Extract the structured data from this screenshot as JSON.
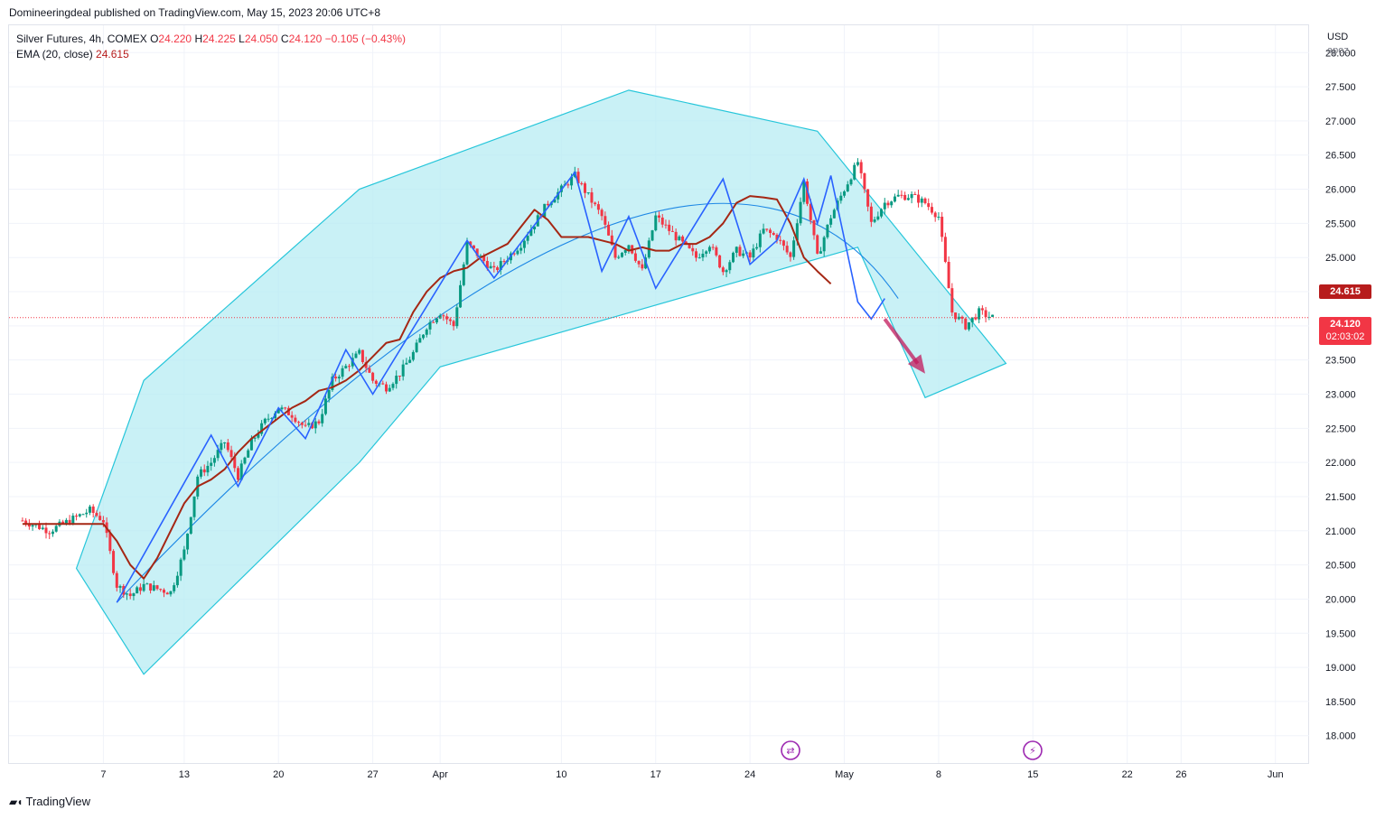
{
  "header": {
    "published": "Domineeringdeal published on TradingView.com, May 15, 2023 20:06 UTC+8"
  },
  "legend": {
    "symbol": "Silver Futures, 4h, COMEX",
    "open_label": "O",
    "open": "24.220",
    "high_label": "H",
    "high": "24.225",
    "low_label": "L",
    "low": "24.050",
    "close_label": "C",
    "close": "24.120",
    "change": "−0.105 (−0.43%)",
    "ema_label": "EMA (20, close)",
    "ema_value": "24.615"
  },
  "axis": {
    "currency": "USD",
    "unit_sub": "apoz"
  },
  "price_tags": {
    "ema": "24.615",
    "last": "24.120",
    "countdown": "02:03:02"
  },
  "footer": {
    "brand": "TradingView"
  },
  "colors": {
    "up": "#089981",
    "down": "#f23645",
    "ema": "#a52714",
    "channel_fill": "#b2ebf2",
    "channel_edge": "#26c6da",
    "zigzag": "#2962ff",
    "arrow": "#c2185b"
  },
  "chart_data": {
    "type": "candlestick",
    "title": "Silver Futures, 4h, COMEX",
    "ylim": [
      17.6,
      28.4
    ],
    "y_ticks": [
      "18.000",
      "18.500",
      "19.000",
      "19.500",
      "20.000",
      "20.500",
      "21.000",
      "21.500",
      "22.000",
      "22.500",
      "23.000",
      "23.500",
      "24.000",
      "24.500",
      "25.000",
      "25.500",
      "26.000",
      "26.500",
      "27.000",
      "27.500",
      "28.000"
    ],
    "x_ticks": [
      {
        "label": "7",
        "t": 7
      },
      {
        "label": "13",
        "t": 13
      },
      {
        "label": "20",
        "t": 20
      },
      {
        "label": "27",
        "t": 27
      },
      {
        "label": "Apr",
        "t": 32
      },
      {
        "label": "10",
        "t": 41
      },
      {
        "label": "17",
        "t": 48
      },
      {
        "label": "24",
        "t": 55
      },
      {
        "label": "May",
        "t": 62
      },
      {
        "label": "8",
        "t": 69
      },
      {
        "label": "15",
        "t": 76
      },
      {
        "label": "22",
        "t": 83
      },
      {
        "label": "26",
        "t": 87
      },
      {
        "label": "Jun",
        "t": 94
      }
    ],
    "x_unit_note": "t = days from Mar 1, 2023",
    "price_anchors": [
      [
        1,
        21.15
      ],
      [
        3,
        21.0
      ],
      [
        5,
        21.2
      ],
      [
        6,
        21.3
      ],
      [
        7,
        21.15
      ],
      [
        8,
        20.2
      ],
      [
        9,
        20.05
      ],
      [
        10,
        20.2
      ],
      [
        11,
        20.15
      ],
      [
        12,
        20.1
      ],
      [
        13,
        20.7
      ],
      [
        14,
        21.8
      ],
      [
        15,
        22.0
      ],
      [
        16,
        22.3
      ],
      [
        17,
        21.8
      ],
      [
        18,
        22.3
      ],
      [
        19,
        22.6
      ],
      [
        20,
        22.8
      ],
      [
        21,
        22.7
      ],
      [
        22,
        22.5
      ],
      [
        23,
        22.6
      ],
      [
        24,
        23.2
      ],
      [
        25,
        23.4
      ],
      [
        26,
        23.6
      ],
      [
        27,
        23.2
      ],
      [
        28,
        23.1
      ],
      [
        29,
        23.3
      ],
      [
        30,
        23.6
      ],
      [
        31,
        24.0
      ],
      [
        32,
        24.2
      ],
      [
        33,
        24.0
      ],
      [
        34,
        25.2
      ],
      [
        35,
        25.0
      ],
      [
        36,
        24.8
      ],
      [
        37,
        25.0
      ],
      [
        38,
        25.2
      ],
      [
        39,
        25.5
      ],
      [
        40,
        25.8
      ],
      [
        41,
        26.0
      ],
      [
        42,
        26.2
      ],
      [
        43,
        25.9
      ],
      [
        44,
        25.6
      ],
      [
        45,
        25.0
      ],
      [
        46,
        25.2
      ],
      [
        47,
        24.8
      ],
      [
        48,
        25.6
      ],
      [
        49,
        25.4
      ],
      [
        50,
        25.2
      ],
      [
        51,
        25.0
      ],
      [
        52,
        25.2
      ],
      [
        53,
        24.8
      ],
      [
        54,
        25.1
      ],
      [
        55,
        25.0
      ],
      [
        56,
        25.4
      ],
      [
        57,
        25.3
      ],
      [
        58,
        25.0
      ],
      [
        59,
        26.1
      ],
      [
        60,
        25.0
      ],
      [
        61,
        25.6
      ],
      [
        62,
        26.0
      ],
      [
        63,
        26.4
      ],
      [
        64,
        25.5
      ],
      [
        65,
        25.8
      ],
      [
        66,
        25.9
      ],
      [
        67,
        25.9
      ],
      [
        68,
        25.8
      ],
      [
        69,
        25.6
      ],
      [
        70,
        24.2
      ],
      [
        71,
        24.0
      ],
      [
        72,
        24.2
      ],
      [
        73,
        24.12
      ]
    ],
    "ema": [
      [
        1,
        21.1
      ],
      [
        3,
        21.1
      ],
      [
        6,
        21.1
      ],
      [
        7,
        21.1
      ],
      [
        8,
        20.85
      ],
      [
        9,
        20.5
      ],
      [
        10,
        20.3
      ],
      [
        11,
        20.6
      ],
      [
        12,
        21.0
      ],
      [
        13,
        21.4
      ],
      [
        14,
        21.65
      ],
      [
        15,
        21.75
      ],
      [
        16,
        21.9
      ],
      [
        17,
        22.15
      ],
      [
        18,
        22.35
      ],
      [
        19,
        22.5
      ],
      [
        20,
        22.65
      ],
      [
        21,
        22.8
      ],
      [
        22,
        22.9
      ],
      [
        23,
        23.05
      ],
      [
        24,
        23.1
      ],
      [
        25,
        23.2
      ],
      [
        26,
        23.35
      ],
      [
        27,
        23.55
      ],
      [
        28,
        23.75
      ],
      [
        29,
        23.8
      ],
      [
        30,
        24.2
      ],
      [
        31,
        24.5
      ],
      [
        32,
        24.7
      ],
      [
        33,
        24.8
      ],
      [
        34,
        24.85
      ],
      [
        35,
        25.0
      ],
      [
        36,
        25.1
      ],
      [
        37,
        25.2
      ],
      [
        38,
        25.45
      ],
      [
        39,
        25.7
      ],
      [
        40,
        25.55
      ],
      [
        41,
        25.3
      ],
      [
        42,
        25.3
      ],
      [
        43,
        25.3
      ],
      [
        44,
        25.25
      ],
      [
        45,
        25.2
      ],
      [
        46,
        25.1
      ],
      [
        47,
        25.15
      ],
      [
        48,
        25.1
      ],
      [
        49,
        25.1
      ],
      [
        50,
        25.2
      ],
      [
        51,
        25.2
      ],
      [
        52,
        25.3
      ],
      [
        53,
        25.5
      ],
      [
        54,
        25.8
      ],
      [
        55,
        25.9
      ],
      [
        56,
        25.88
      ],
      [
        57,
        25.85
      ],
      [
        58,
        25.5
      ],
      [
        59,
        25.0
      ],
      [
        60,
        24.8
      ],
      [
        61,
        24.615
      ]
    ],
    "zigzag": [
      [
        8,
        19.95
      ],
      [
        15,
        22.4
      ],
      [
        17,
        21.65
      ],
      [
        20,
        22.8
      ],
      [
        22,
        22.35
      ],
      [
        25,
        23.65
      ],
      [
        27,
        23.0
      ],
      [
        34,
        25.25
      ],
      [
        36,
        24.7
      ],
      [
        42,
        26.25
      ],
      [
        44,
        24.8
      ],
      [
        46,
        25.6
      ],
      [
        48,
        24.55
      ],
      [
        53,
        26.15
      ],
      [
        55,
        24.9
      ],
      [
        57,
        25.25
      ],
      [
        59,
        26.15
      ],
      [
        60,
        25.5
      ],
      [
        61,
        26.2
      ],
      [
        63,
        24.35
      ],
      [
        64,
        24.1
      ],
      [
        65,
        24.4
      ]
    ],
    "channel_polygon": [
      [
        5,
        20.45
      ],
      [
        10,
        23.2
      ],
      [
        26,
        26.0
      ],
      [
        46,
        27.45
      ],
      [
        60,
        26.85
      ],
      [
        74,
        23.45
      ],
      [
        68,
        22.95
      ],
      [
        63,
        25.15
      ],
      [
        32,
        23.4
      ],
      [
        26,
        22.0
      ],
      [
        10,
        18.9
      ]
    ],
    "arc_control": [
      [
        8,
        19.95
      ],
      [
        35,
        25.6
      ],
      [
        56,
        27.3
      ],
      [
        66,
        24.4
      ]
    ],
    "forecast_arrow": [
      [
        65,
        24.1
      ],
      [
        68,
        23.3
      ]
    ],
    "last_price": 24.12
  }
}
